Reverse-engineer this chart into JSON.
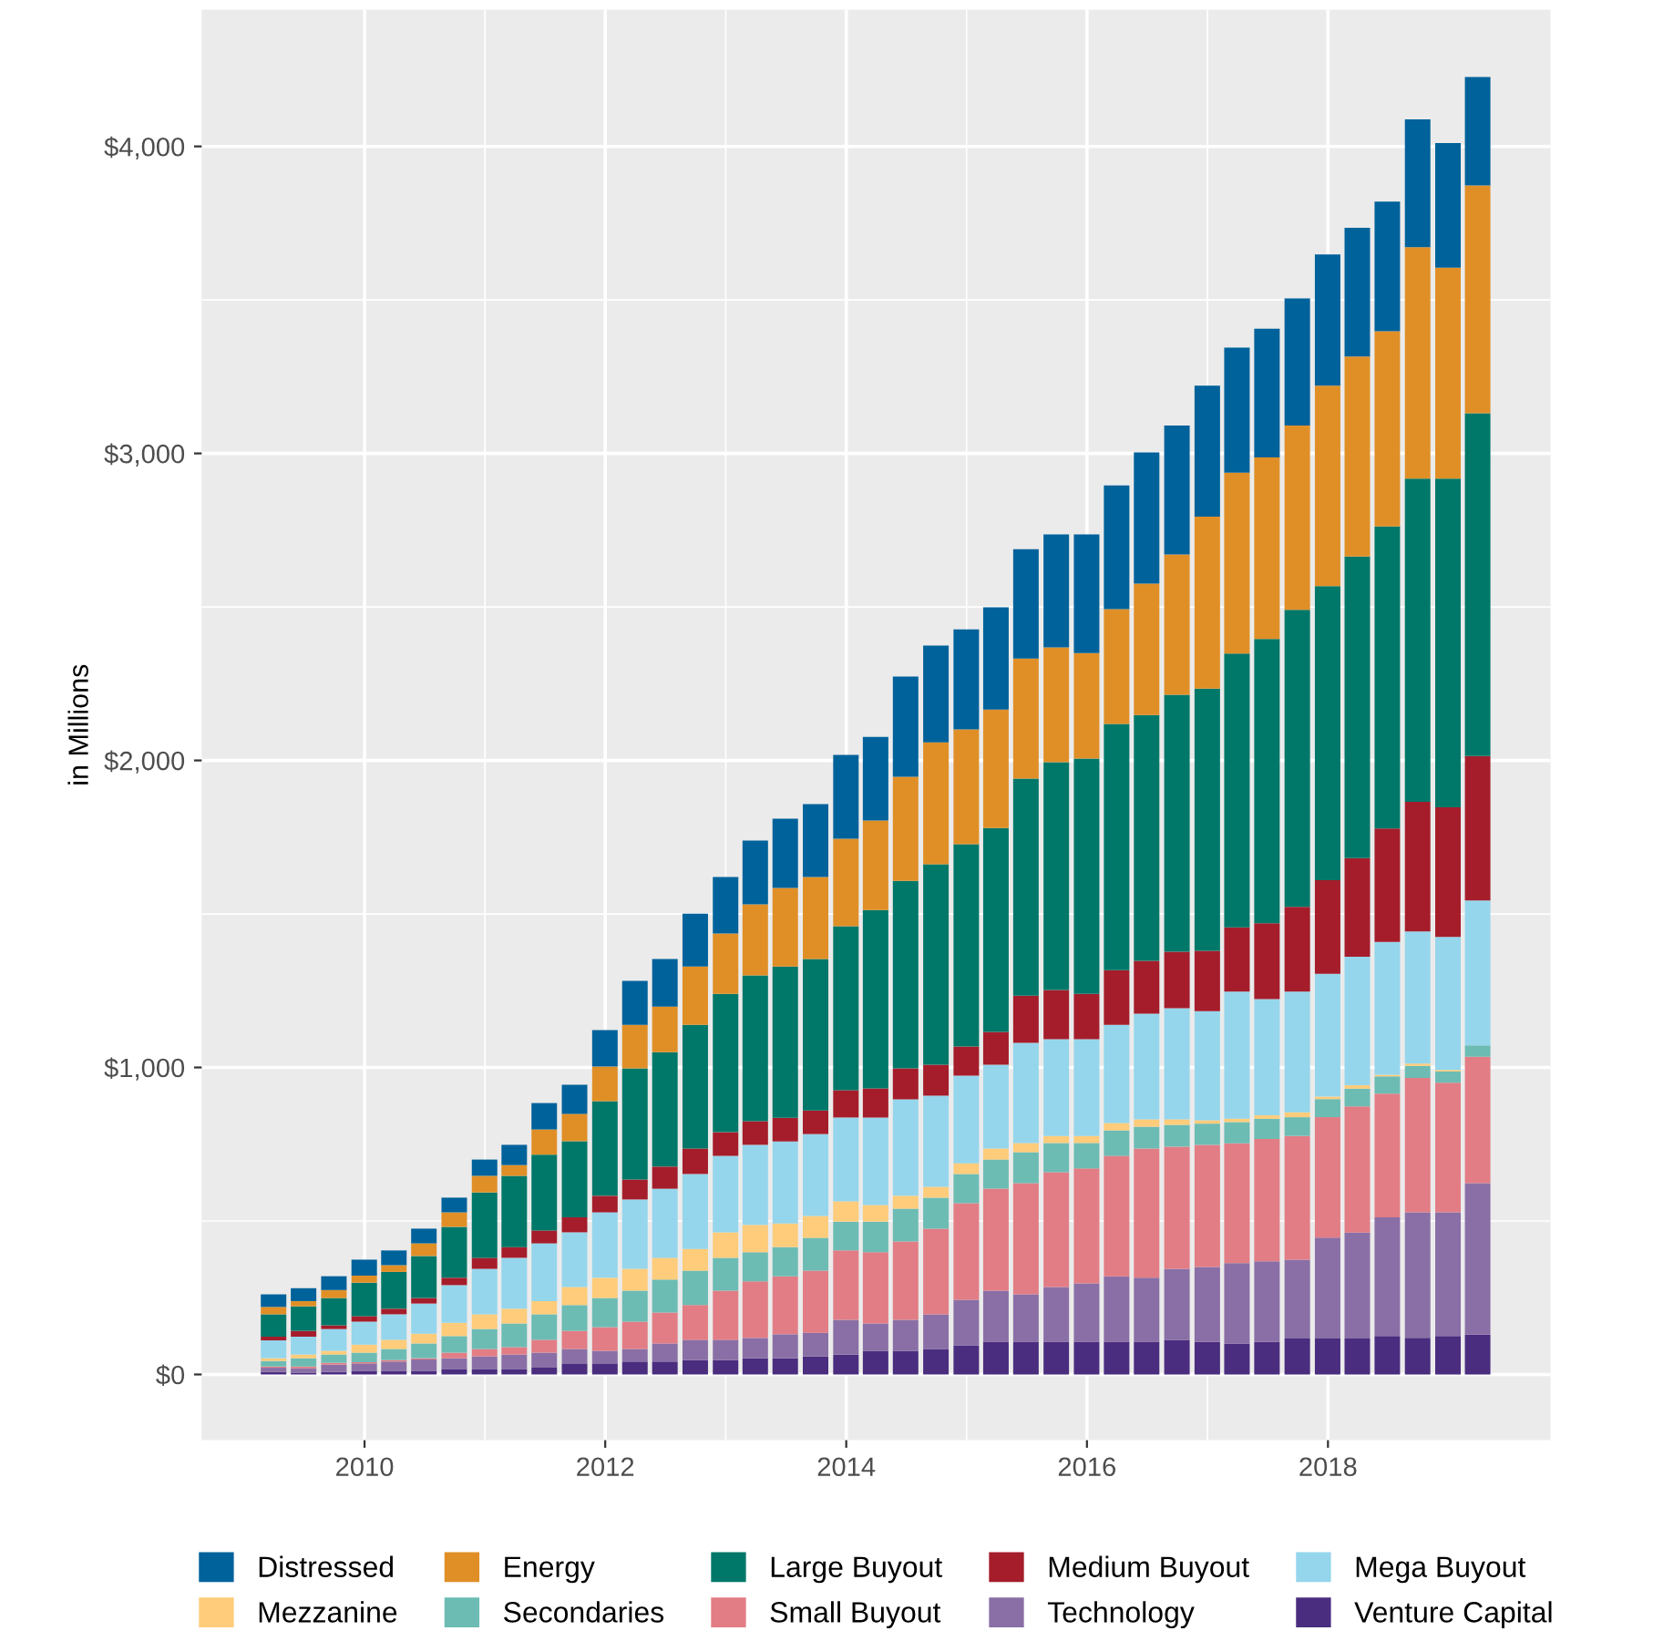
{
  "chart_data": {
    "type": "bar",
    "stacked": true,
    "ylabel": "in Millions",
    "x": [
      "2009-03-31",
      "2009-06-30",
      "2009-09-30",
      "2009-12-31",
      "2010-03-31",
      "2010-06-30",
      "2010-09-30",
      "2010-12-31",
      "2011-03-31",
      "2011-06-30",
      "2011-09-30",
      "2011-12-31",
      "2012-03-31",
      "2012-06-30",
      "2012-09-30",
      "2012-12-31",
      "2013-03-31",
      "2013-06-30",
      "2013-09-30",
      "2013-12-31",
      "2014-03-31",
      "2014-06-30",
      "2014-09-30",
      "2014-12-31",
      "2015-03-31",
      "2015-06-30",
      "2015-09-30",
      "2015-12-31",
      "2016-03-31",
      "2016-06-30",
      "2016-09-30",
      "2016-12-31",
      "2017-03-31",
      "2017-06-30",
      "2017-09-30",
      "2017-12-31",
      "2018-03-31",
      "2018-06-30",
      "2018-09-30",
      "2018-12-31",
      "2019-03-31"
    ],
    "xlim": [
      "2008-08-25",
      "2019-11-07"
    ],
    "xticks": [
      {
        "value": "2010-01-01",
        "label": "2010"
      },
      {
        "value": "2012-01-01",
        "label": "2012"
      },
      {
        "value": "2014-01-01",
        "label": "2014"
      },
      {
        "value": "2016-01-01",
        "label": "2016"
      },
      {
        "value": "2018-01-01",
        "label": "2018"
      }
    ],
    "ylim": [
      -214,
      4445
    ],
    "yticks": [
      {
        "value": 0,
        "label": "$0"
      },
      {
        "value": 1000,
        "label": "$1,000"
      },
      {
        "value": 2000,
        "label": "$2,000"
      },
      {
        "value": 3000,
        "label": "$3,000"
      },
      {
        "value": 4000,
        "label": "$4,000"
      }
    ],
    "grid": true,
    "legend": "bottom",
    "series": [
      {
        "name": "Venture Capital",
        "color": "#4a2d7f",
        "values": [
          8,
          6,
          8,
          12,
          12,
          12,
          18,
          18,
          18,
          24,
          36,
          36,
          42,
          42,
          47,
          47,
          53,
          53,
          59,
          65,
          77,
          77,
          83,
          95,
          107,
          107,
          107,
          107,
          107,
          107,
          113,
          106,
          101,
          106,
          117,
          117,
          117,
          125,
          119,
          125,
          130
        ]
      },
      {
        "name": "Technology",
        "color": "#8a6fa6",
        "values": [
          14,
          14,
          24,
          24,
          30,
          37,
          35,
          41,
          47,
          47,
          47,
          41,
          41,
          59,
          66,
          66,
          66,
          78,
          77,
          113,
          89,
          101,
          113,
          148,
          166,
          154,
          178,
          190,
          213,
          208,
          231,
          244,
          262,
          263,
          257,
          329,
          345,
          387,
          409,
          403,
          493
        ]
      },
      {
        "name": "Small Buyout",
        "color": "#e27d85",
        "values": [
          4,
          6,
          6,
          4,
          5,
          4,
          18,
          24,
          24,
          42,
          59,
          77,
          89,
          101,
          113,
          160,
          184,
          189,
          202,
          226,
          232,
          255,
          279,
          315,
          332,
          362,
          374,
          374,
          392,
          421,
          398,
          398,
          390,
          398,
          403,
          392,
          411,
          403,
          438,
          422,
          412
        ]
      },
      {
        "name": "Secondaries",
        "color": "#6cbcb4",
        "values": [
          18,
          27,
          27,
          31,
          36,
          48,
          54,
          65,
          77,
          83,
          84,
          95,
          101,
          107,
          112,
          107,
          95,
          95,
          107,
          94,
          100,
          107,
          101,
          95,
          95,
          101,
          95,
          83,
          83,
          71,
          71,
          69,
          69,
          66,
          61,
          59,
          58,
          56,
          39,
          37,
          37
        ]
      },
      {
        "name": "Mezzanine",
        "color": "#fecc7a",
        "values": [
          9,
          12,
          12,
          26,
          30,
          32,
          43,
          48,
          48,
          43,
          59,
          66,
          71,
          71,
          71,
          83,
          89,
          77,
          71,
          66,
          54,
          42,
          35,
          35,
          36,
          30,
          23,
          23,
          24,
          24,
          18,
          11,
          11,
          11,
          16,
          8,
          11,
          5,
          8,
          5,
          0
        ]
      },
      {
        "name": "Mega Buyout",
        "color": "#95d6ec",
        "values": [
          58,
          58,
          71,
          75,
          83,
          98,
          123,
          148,
          166,
          188,
          178,
          213,
          226,
          225,
          244,
          249,
          261,
          267,
          267,
          273,
          285,
          314,
          297,
          285,
          273,
          326,
          315,
          315,
          320,
          344,
          362,
          355,
          414,
          379,
          393,
          400,
          419,
          433,
          430,
          433,
          472
        ]
      },
      {
        "name": "Medium Buyout",
        "color": "#a51d2b",
        "values": [
          12,
          19,
          12,
          18,
          18,
          18,
          24,
          36,
          35,
          42,
          49,
          54,
          65,
          72,
          83,
          77,
          77,
          77,
          77,
          89,
          95,
          101,
          101,
          95,
          107,
          154,
          160,
          148,
          178,
          172,
          184,
          197,
          209,
          247,
          276,
          305,
          321,
          369,
          422,
          422,
          470
        ]
      },
      {
        "name": "Large Buyout",
        "color": "#007869",
        "values": [
          73,
          80,
          89,
          109,
          120,
          137,
          166,
          213,
          232,
          247,
          248,
          308,
          362,
          373,
          403,
          451,
          475,
          493,
          493,
          534,
          581,
          611,
          653,
          659,
          664,
          707,
          742,
          766,
          802,
          801,
          837,
          854,
          892,
          926,
          968,
          958,
          982,
          984,
          1053,
          1071,
          1117
        ]
      },
      {
        "name": "Energy",
        "color": "#e08f27",
        "values": [
          24,
          17,
          26,
          23,
          22,
          41,
          47,
          54,
          35,
          82,
          89,
          113,
          142,
          148,
          190,
          196,
          231,
          256,
          267,
          285,
          291,
          339,
          397,
          374,
          386,
          391,
          374,
          344,
          374,
          428,
          457,
          560,
          589,
          591,
          600,
          653,
          652,
          636,
          754,
          687,
          742
        ]
      },
      {
        "name": "Distressed",
        "color": "#00629b",
        "values": [
          41,
          42,
          45,
          52,
          48,
          48,
          48,
          53,
          66,
          86,
          95,
          119,
          143,
          155,
          172,
          184,
          208,
          225,
          238,
          273,
          273,
          326,
          315,
          326,
          333,
          356,
          368,
          386,
          403,
          427,
          420,
          427,
          408,
          419,
          414,
          427,
          419,
          422,
          416,
          406,
          353
        ]
      }
    ]
  }
}
